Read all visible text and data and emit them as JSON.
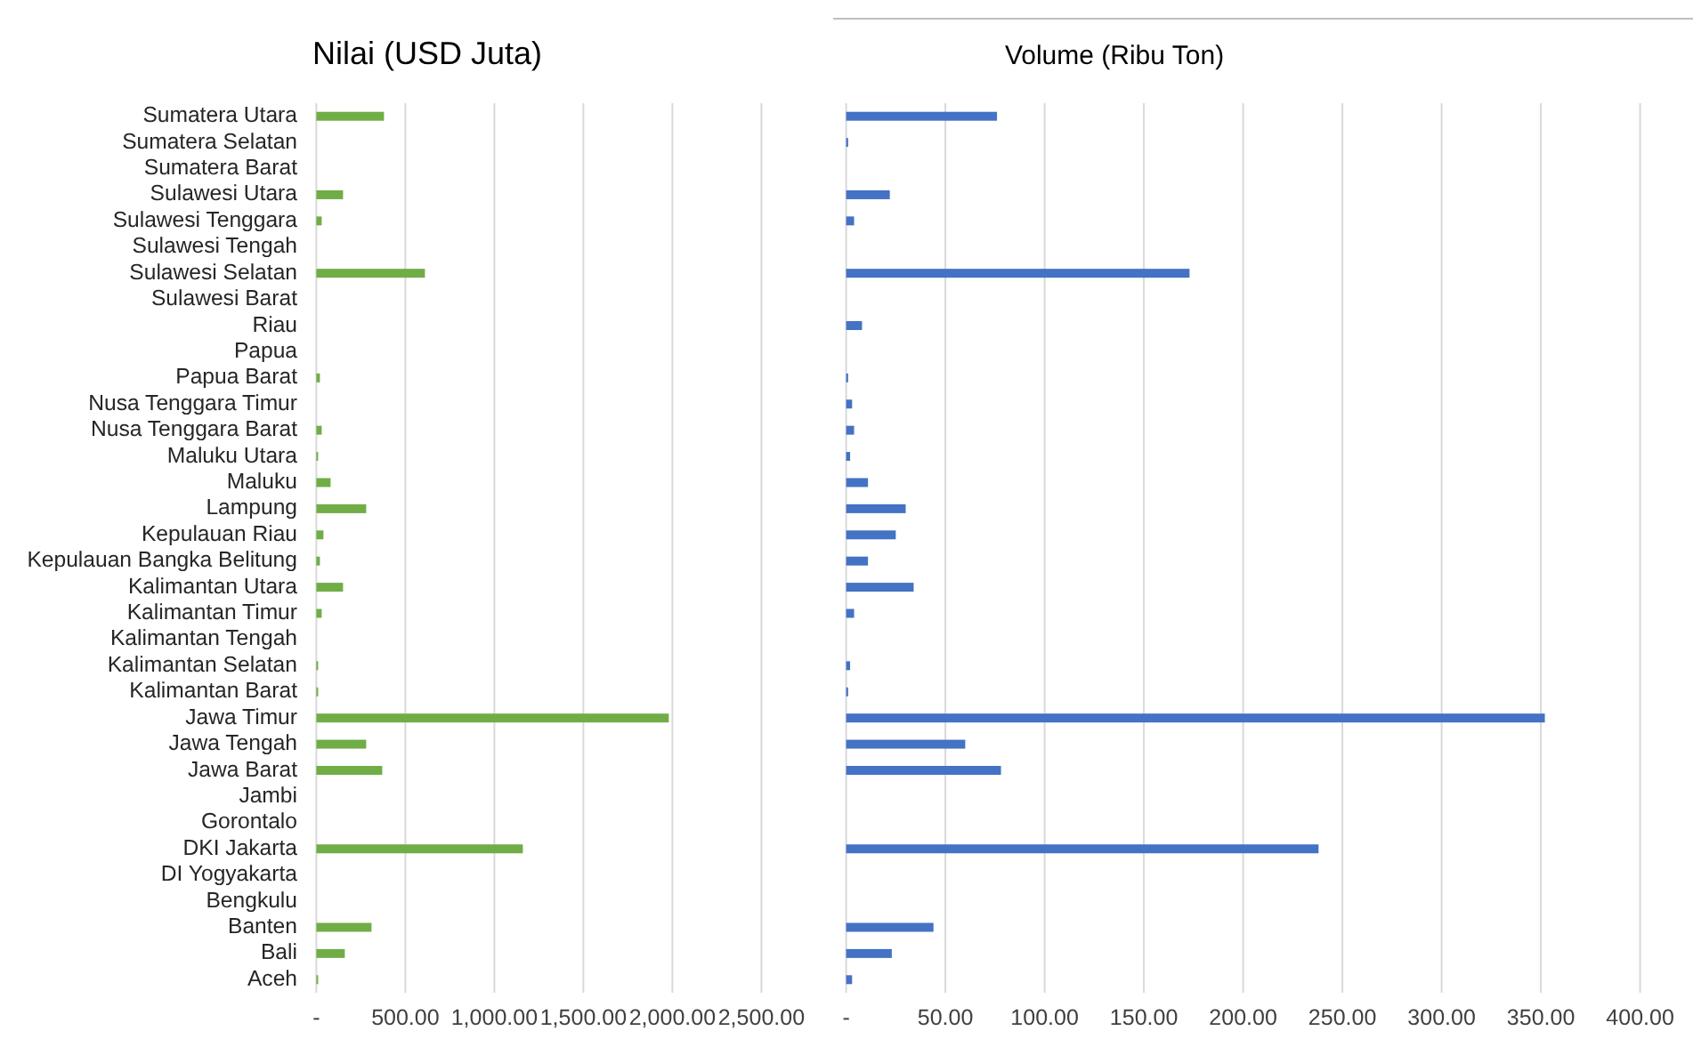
{
  "chart_data": [
    {
      "type": "bar",
      "orientation": "horizontal",
      "title": "Nilai (USD Juta)",
      "color": "#70ad47",
      "categories": [
        "Sumatera Utara",
        "Sumatera Selatan",
        "Sumatera Barat",
        "Sulawesi Utara",
        "Sulawesi Tenggara",
        "Sulawesi Tengah",
        "Sulawesi Selatan",
        "Sulawesi Barat",
        "Riau",
        "Papua",
        "Papua Barat",
        "Nusa Tenggara Timur",
        "Nusa Tenggara Barat",
        "Maluku Utara",
        "Maluku",
        "Lampung",
        "Kepulauan Riau",
        "Kepulauan Bangka Belitung",
        "Kalimantan Utara",
        "Kalimantan Timur",
        "Kalimantan Tengah",
        "Kalimantan Selatan",
        "Kalimantan Barat",
        "Jawa Timur",
        "Jawa Tengah",
        "Jawa Barat",
        "Jambi",
        "Gorontalo",
        "DKI Jakarta",
        "DI Yogyakarta",
        "Bengkulu",
        "Banten",
        "Bali",
        "Aceh"
      ],
      "values": [
        380,
        null,
        null,
        150,
        30,
        null,
        610,
        null,
        null,
        null,
        20,
        null,
        30,
        10,
        80,
        280,
        40,
        20,
        150,
        30,
        null,
        10,
        10,
        1980,
        280,
        370,
        null,
        null,
        1160,
        null,
        null,
        310,
        160,
        10
      ],
      "xlim": [
        0,
        2500
      ],
      "xticks": [
        {
          "value": 0,
          "label": "-"
        },
        {
          "value": 500,
          "label": "500.00"
        },
        {
          "value": 1000,
          "label": "1,000.00"
        },
        {
          "value": 1500,
          "label": "1,500.00"
        },
        {
          "value": 2000,
          "label": "2,000.00"
        },
        {
          "value": 2500,
          "label": "2,500.00"
        }
      ],
      "grid": "x"
    },
    {
      "type": "bar",
      "orientation": "horizontal",
      "title": "Volume (Ribu Ton)",
      "color": "#4472c4",
      "categories": [
        null,
        null,
        null,
        null,
        null,
        null,
        null,
        null,
        null,
        null,
        null,
        null,
        null,
        null,
        null,
        null,
        null,
        null,
        null,
        null,
        null,
        null,
        null,
        null,
        null,
        null,
        null,
        null,
        null,
        null,
        null,
        null,
        null,
        null
      ],
      "values": [
        76,
        1,
        null,
        22,
        4,
        null,
        173,
        null,
        8,
        null,
        1,
        3,
        4,
        2,
        11,
        30,
        25,
        11,
        34,
        4,
        null,
        2,
        1,
        352,
        60,
        78,
        null,
        null,
        238,
        null,
        null,
        44,
        23,
        3
      ],
      "xlim": [
        0,
        400
      ],
      "xticks": [
        {
          "value": 0,
          "label": "-"
        },
        {
          "value": 50,
          "label": "50.00"
        },
        {
          "value": 100,
          "label": "100.00"
        },
        {
          "value": 150,
          "label": "150.00"
        },
        {
          "value": 200,
          "label": "200.00"
        },
        {
          "value": 250,
          "label": "250.00"
        },
        {
          "value": 300,
          "label": "300.00"
        },
        {
          "value": 350,
          "label": "350.00"
        },
        {
          "value": 400,
          "label": "400.00"
        }
      ],
      "grid": "x"
    }
  ]
}
